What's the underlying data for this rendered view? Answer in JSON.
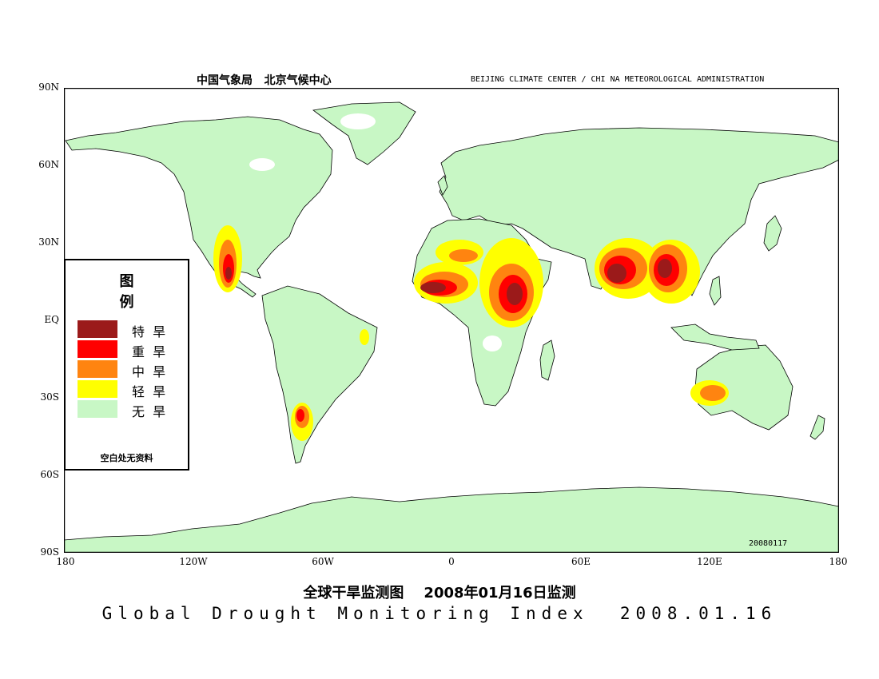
{
  "header": {
    "left_cn": "中国气象局   北京气候中心",
    "right_en": "BEIJING CLIMATE CENTER / CHI NA METEOROLOGICAL ADMINISTRATION"
  },
  "axes": {
    "lat_labels": [
      "90N",
      "60N",
      "30N",
      "EQ",
      "30S",
      "60S",
      "90S"
    ],
    "lon_labels": [
      "180",
      "120W",
      "60W",
      "0",
      "60E",
      "120E",
      "180"
    ]
  },
  "legend": {
    "title": "图  例",
    "items": [
      {
        "label": "特  旱",
        "color": "#9b1a1a"
      },
      {
        "label": "重  旱",
        "color": "#ff0000"
      },
      {
        "label": "中  旱",
        "color": "#ff8410"
      },
      {
        "label": "轻  旱",
        "color": "#ffff00"
      },
      {
        "label": "无  旱",
        "color": "#c8f7c5"
      }
    ],
    "note": "空白处无资料"
  },
  "datestamp": "20080117",
  "title_cn": "全球干旱监测图    2008年01月16日监测",
  "title_en": "Global Drought Monitoring Index  2008.01.16",
  "colors": {
    "land": "#c8f7c5",
    "ocean": "#ffffff",
    "coast": "#000000",
    "extreme": "#9b1a1a",
    "severe": "#ff0000",
    "moderate": "#ff8410",
    "light": "#ffff00"
  }
}
